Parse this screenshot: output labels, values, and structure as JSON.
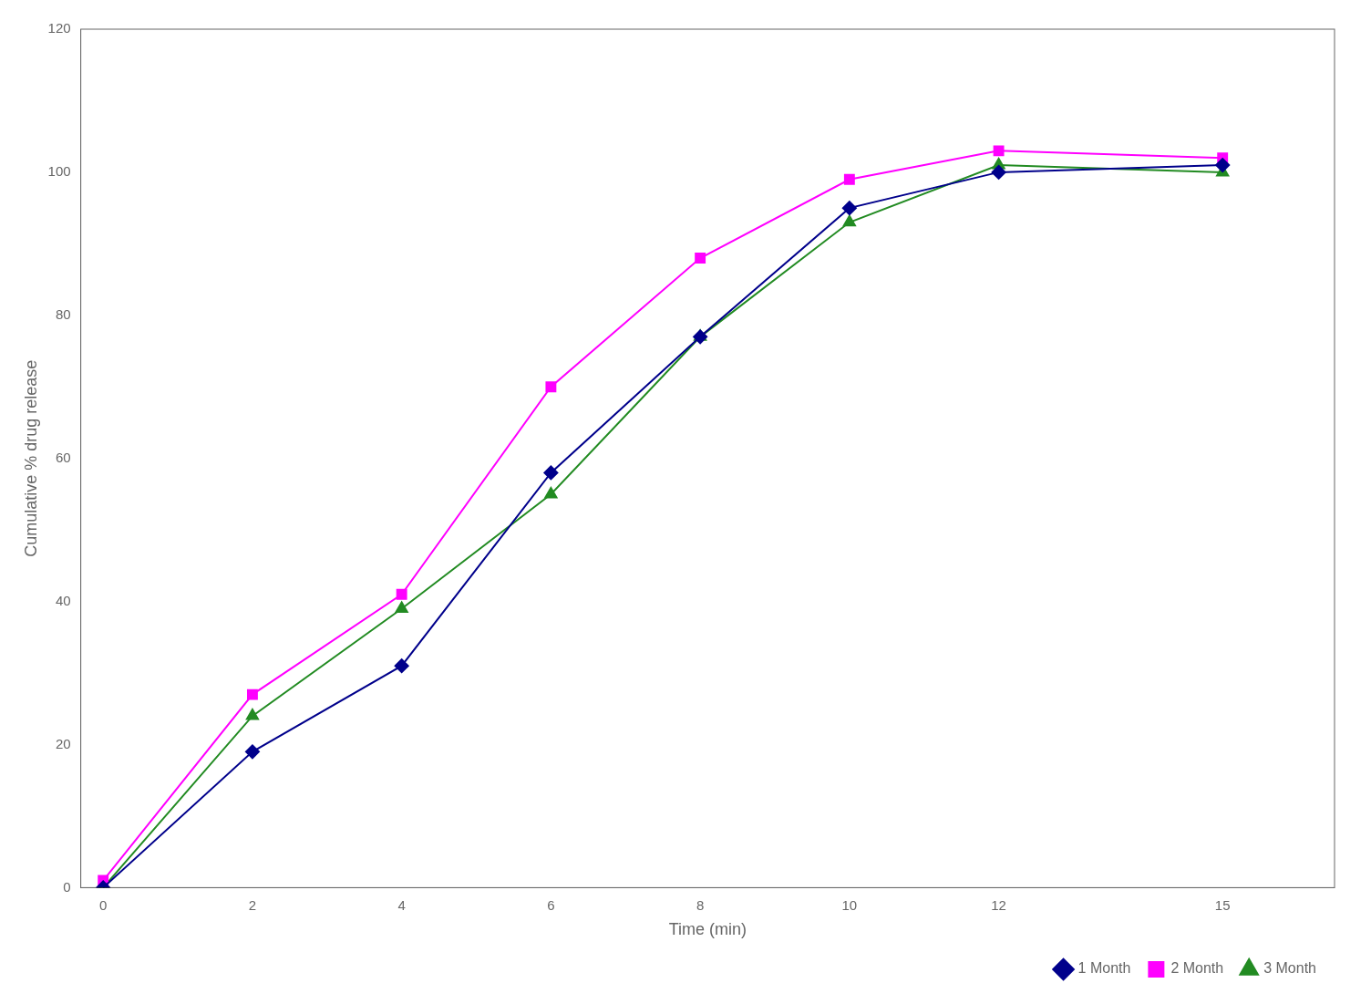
{
  "chart_data": {
    "type": "line",
    "xlabel": "Time (min)",
    "ylabel": "Cumulative % drug release",
    "x": [
      0,
      2,
      4,
      6,
      8,
      10,
      12,
      15
    ],
    "series": [
      {
        "name": "1 Month",
        "color": "#00008B",
        "marker": "diamond",
        "values": [
          0,
          19,
          31,
          58,
          77,
          95,
          100,
          101
        ]
      },
      {
        "name": "2 Month",
        "color": "#FF00FF",
        "marker": "square",
        "values": [
          1,
          27,
          41,
          70,
          88,
          99,
          103,
          102
        ]
      },
      {
        "name": "3 Month",
        "color": "#228B22",
        "marker": "triangle",
        "values": [
          0,
          24,
          39,
          55,
          77,
          93,
          101,
          100
        ]
      }
    ],
    "xlim": [
      -0.3,
      16.5
    ],
    "ylim": [
      0,
      120
    ],
    "xticks": [
      0,
      2,
      4,
      6,
      8,
      10,
      12,
      15
    ],
    "yticks": [
      0,
      20,
      40,
      60,
      80,
      100,
      120
    ],
    "grid": false,
    "legend": "lower right"
  }
}
